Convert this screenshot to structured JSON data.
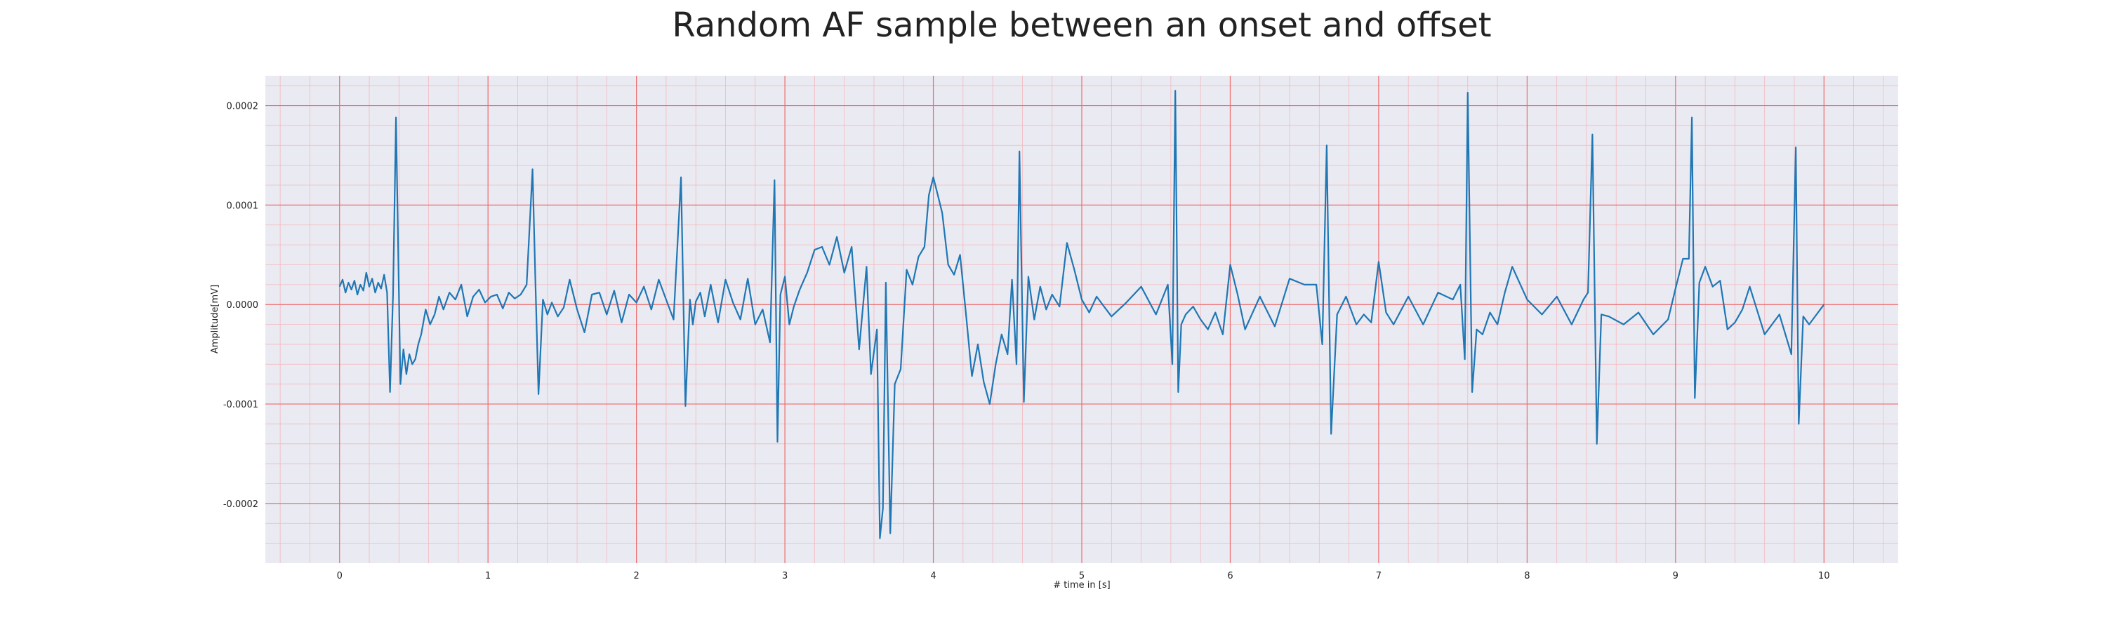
{
  "chart_data": {
    "type": "line",
    "title": "Random AF sample between an onset and offset",
    "xlabel": "# time in [s]",
    "ylabel": "Amplitude[mV]",
    "xlim": [
      -0.5,
      10.5
    ],
    "ylim": [
      -0.00026,
      0.00023
    ],
    "xticks": [
      0,
      1,
      2,
      3,
      4,
      5,
      6,
      7,
      8,
      9,
      10
    ],
    "xtick_labels": [
      "0",
      "1",
      "2",
      "3",
      "4",
      "5",
      "6",
      "7",
      "8",
      "9",
      "10"
    ],
    "yticks": [
      -0.0002,
      -0.0001,
      0.0,
      0.0001,
      0.0002
    ],
    "ytick_labels": [
      "-0.0002",
      "-0.0001",
      "0.0000",
      "0.0001",
      "0.0002"
    ],
    "grid": true,
    "colors": {
      "line": "#1f77b4",
      "plot_bg": "#eaeaf2",
      "major_grid": "#ef6b6b",
      "minor_grid": "#f4b8bd"
    },
    "series": [
      {
        "x": [
          0.0,
          0.02,
          0.04,
          0.06,
          0.08,
          0.1,
          0.12,
          0.14,
          0.16,
          0.18,
          0.2,
          0.22,
          0.24,
          0.26,
          0.28,
          0.3,
          0.32,
          0.34,
          0.36,
          0.38,
          0.4,
          0.41,
          0.43,
          0.45,
          0.47,
          0.49,
          0.51,
          0.53,
          0.55,
          0.58,
          0.61,
          0.64,
          0.67,
          0.7,
          0.74,
          0.78,
          0.82,
          0.86,
          0.9,
          0.94,
          0.98,
          1.02,
          1.06,
          1.1,
          1.14,
          1.18,
          1.22,
          1.26,
          1.3,
          1.32,
          1.34,
          1.37,
          1.4,
          1.43,
          1.47,
          1.51,
          1.55,
          1.6,
          1.65,
          1.7,
          1.75,
          1.8,
          1.85,
          1.9,
          1.95,
          2.0,
          2.05,
          2.1,
          2.15,
          2.2,
          2.25,
          2.3,
          2.33,
          2.36,
          2.38,
          2.4,
          2.43,
          2.46,
          2.5,
          2.55,
          2.6,
          2.65,
          2.7,
          2.75,
          2.8,
          2.85,
          2.9,
          2.93,
          2.95,
          2.97,
          3.0,
          3.03,
          3.06,
          3.1,
          3.15,
          3.2,
          3.25,
          3.3,
          3.35,
          3.4,
          3.45,
          3.5,
          3.55,
          3.58,
          3.62,
          3.64,
          3.66,
          3.68,
          3.71,
          3.74,
          3.78,
          3.82,
          3.86,
          3.9,
          3.94,
          3.97,
          4.0,
          4.03,
          4.06,
          4.1,
          4.14,
          4.18,
          4.22,
          4.26,
          4.3,
          4.34,
          4.38,
          4.42,
          4.46,
          4.5,
          4.53,
          4.56,
          4.58,
          4.61,
          4.64,
          4.68,
          4.72,
          4.76,
          4.8,
          4.85,
          4.9,
          4.95,
          5.0,
          5.05,
          5.1,
          5.2,
          5.3,
          5.4,
          5.5,
          5.58,
          5.61,
          5.63,
          5.65,
          5.67,
          5.7,
          5.75,
          5.8,
          5.85,
          5.9,
          5.95,
          6.0,
          6.05,
          6.1,
          6.2,
          6.3,
          6.4,
          6.5,
          6.58,
          6.62,
          6.65,
          6.68,
          6.72,
          6.78,
          6.85,
          6.9,
          6.95,
          7.0,
          7.05,
          7.1,
          7.2,
          7.3,
          7.4,
          7.5,
          7.55,
          7.58,
          7.6,
          7.63,
          7.66,
          7.7,
          7.75,
          7.8,
          7.85,
          7.9,
          8.0,
          8.1,
          8.2,
          8.3,
          8.38,
          8.41,
          8.44,
          8.47,
          8.5,
          8.55,
          8.65,
          8.75,
          8.85,
          8.95,
          9.0,
          9.05,
          9.09,
          9.11,
          9.13,
          9.16,
          9.2,
          9.25,
          9.3,
          9.35,
          9.4,
          9.45,
          9.5,
          9.6,
          9.7,
          9.78,
          9.81,
          9.83,
          9.86,
          9.9,
          9.95,
          10.0
        ],
        "values": [
          1.8e-05,
          2.5e-05,
          1.2e-05,
          2.2e-05,
          1.5e-05,
          2.4e-05,
          1e-05,
          2e-05,
          1.4e-05,
          3.2e-05,
          1.8e-05,
          2.6e-05,
          1.2e-05,
          2.2e-05,
          1.6e-05,
          3e-05,
          1.2e-05,
          -8.8e-05,
          1e-05,
          0.000188,
          1e-05,
          -8e-05,
          -4.5e-05,
          -7e-05,
          -5e-05,
          -6e-05,
          -5.5e-05,
          -4e-05,
          -3e-05,
          -5e-06,
          -2e-05,
          -1e-05,
          8e-06,
          -5e-06,
          1.2e-05,
          5e-06,
          2e-05,
          -1.2e-05,
          8e-06,
          1.5e-05,
          2e-06,
          8e-06,
          1e-05,
          -4e-06,
          1.2e-05,
          6e-06,
          1e-05,
          2e-05,
          0.000136,
          2e-05,
          -9e-05,
          5e-06,
          -1e-05,
          2e-06,
          -1.2e-05,
          -3e-06,
          2.5e-05,
          -5e-06,
          -2.8e-05,
          1e-05,
          1.2e-05,
          -1e-05,
          1.4e-05,
          -1.8e-05,
          1e-05,
          2e-06,
          1.8e-05,
          -5e-06,
          2.5e-05,
          5e-06,
          -1.5e-05,
          0.000128,
          -0.000102,
          5e-06,
          -2e-05,
          3e-06,
          1.2e-05,
          -1.2e-05,
          2e-05,
          -1.8e-05,
          2.5e-05,
          2e-06,
          -1.5e-05,
          2.6e-05,
          -2e-05,
          -5e-06,
          -3.8e-05,
          0.000125,
          -0.000138,
          1e-05,
          2.8e-05,
          -2e-05,
          -2e-06,
          1.5e-05,
          3.2e-05,
          5.5e-05,
          5.8e-05,
          4e-05,
          6.8e-05,
          3.2e-05,
          5.8e-05,
          -4.5e-05,
          3.8e-05,
          -7e-05,
          -2.5e-05,
          -0.000235,
          -0.000205,
          2.2e-05,
          -0.00023,
          -8e-05,
          -6.5e-05,
          3.5e-05,
          2e-05,
          4.8e-05,
          5.8e-05,
          0.00011,
          0.000128,
          0.00011,
          9.2e-05,
          4e-05,
          3e-05,
          5e-05,
          -1e-05,
          -7.2e-05,
          -4e-05,
          -7.8e-05,
          -0.0001,
          -6e-05,
          -3e-05,
          -5e-05,
          2.5e-05,
          -6e-05,
          0.000154,
          -9.8e-05,
          2.8e-05,
          -1.5e-05,
          1.8e-05,
          -5e-06,
          1e-05,
          -2e-06,
          6.2e-05,
          3.5e-05,
          5e-06,
          -8e-06,
          8e-06,
          -1.2e-05,
          2e-06,
          1.8e-05,
          -1e-05,
          2e-05,
          -6e-05,
          0.000215,
          -8.8e-05,
          -2e-05,
          -1e-05,
          -2e-06,
          -1.5e-05,
          -2.5e-05,
          -8e-06,
          -3e-05,
          4e-05,
          1e-05,
          -2.5e-05,
          8e-06,
          -2.2e-05,
          2.6e-05,
          2e-05,
          2e-05,
          -4e-05,
          0.00016,
          -0.00013,
          -1e-05,
          8e-06,
          -2e-05,
          -1e-05,
          -1.8e-05,
          4.3e-05,
          -8e-06,
          -2e-05,
          8e-06,
          -2e-05,
          1.2e-05,
          5e-06,
          2e-05,
          -5.5e-05,
          0.000213,
          -8.8e-05,
          -2.5e-05,
          -3e-05,
          -8e-06,
          -2e-05,
          1.2e-05,
          3.8e-05,
          5e-06,
          -1e-05,
          8e-06,
          -2e-05,
          5e-06,
          1.2e-05,
          0.000171,
          -0.00014,
          -1e-05,
          -1.2e-05,
          -2e-05,
          -8e-06,
          -3e-05,
          -1.5e-05,
          1.6e-05,
          4.6e-05,
          4.6e-05,
          0.000188,
          -9.4e-05,
          2.2e-05,
          3.8e-05,
          1.8e-05,
          2.4e-05,
          -2.5e-05,
          -1.8e-05,
          -5e-06,
          1.8e-05,
          -3e-05,
          -1e-05,
          -5e-05,
          0.000158,
          -0.00012,
          -1.2e-05,
          -2e-05,
          -1e-05,
          0.0
        ]
      }
    ]
  }
}
